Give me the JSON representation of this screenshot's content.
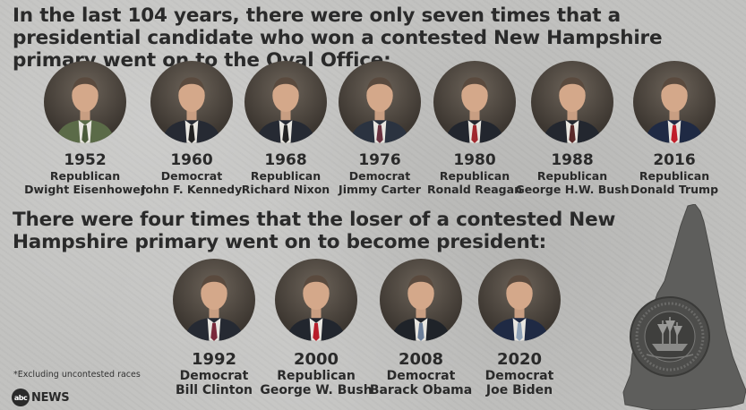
{
  "headline_top": "In the last 104 years, there were only seven times that a presidential candidate who won a contested New Hampshire primary went on to the Oval Office:",
  "headline_bottom": "There were four times that the loser of a contested New Hampshire primary went on to become president:",
  "winners": [
    {
      "year": "1952",
      "party": "Republican",
      "name": "Dwight Eisenhower",
      "tie": "#4a5a3a",
      "suit": "#5b6b48"
    },
    {
      "year": "1960",
      "party": "Democrat",
      "name": "John F. Kennedy",
      "tie": "#222",
      "suit": "#262a33"
    },
    {
      "year": "1968",
      "party": "Republican",
      "name": "Richard Nixon",
      "tie": "#222",
      "suit": "#262a33"
    },
    {
      "year": "1976",
      "party": "Democrat",
      "name": "Jimmy Carter",
      "tie": "#6a3340",
      "suit": "#2b3340"
    },
    {
      "year": "1980",
      "party": "Republican",
      "name": "Ronald Reagan",
      "tie": "#a0282e",
      "suit": "#22262e"
    },
    {
      "year": "1988",
      "party": "Republican",
      "name": "George H.W. Bush",
      "tie": "#5a2a2a",
      "suit": "#23272f"
    },
    {
      "year": "2016",
      "party": "Republican",
      "name": "Donald Trump",
      "tie": "#c01e2a",
      "suit": "#1f2a44"
    }
  ],
  "losers": [
    {
      "year": "1992",
      "party": "Democrat",
      "name": "Bill Clinton",
      "tie": "#7a2a3a",
      "suit": "#262a33"
    },
    {
      "year": "2000",
      "party": "Republican",
      "name": "George W. Bush",
      "tie": "#b81e2a",
      "suit": "#22262e"
    },
    {
      "year": "2008",
      "party": "Democrat",
      "name": "Barack Obama",
      "tie": "#6c7f9a",
      "suit": "#1f2329"
    },
    {
      "year": "2020",
      "party": "Democrat",
      "name": "Joe Biden",
      "tie": "#8fa2b8",
      "suit": "#1f2a44"
    }
  ],
  "footnote": "*Excluding uncontested races",
  "logo": {
    "mark": "abc",
    "word": "NEWS"
  },
  "colors": {
    "background": "#c2c2c0",
    "text": "#2a2a2a",
    "portrait_bg": "#3d3731"
  }
}
